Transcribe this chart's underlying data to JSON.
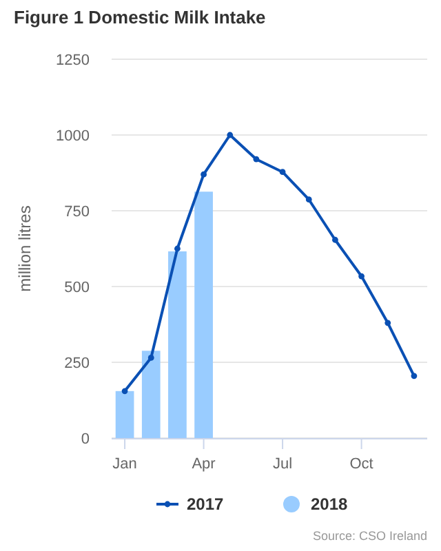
{
  "chart_data": {
    "type": "line",
    "title": "Figure 1 Domestic Milk Intake",
    "ylabel": "million litres",
    "categories": [
      "Jan",
      null,
      null,
      "Apr",
      null,
      null,
      "Jul",
      null,
      null,
      "Oct",
      null,
      null
    ],
    "series": [
      {
        "name": "2017",
        "color": "#0a50b4",
        "values": [
          155,
          265,
          625,
          870,
          1000,
          920,
          878,
          787,
          654,
          534,
          380,
          205
        ]
      },
      {
        "name": "2018",
        "type": "bar",
        "color": "#99ccff",
        "values": [
          155,
          288,
          616,
          813,
          null,
          null,
          null,
          null,
          null,
          null,
          null,
          null
        ]
      }
    ],
    "ylim": [
      0,
      1250
    ],
    "yticks": [
      0,
      250,
      500,
      750,
      1000,
      1250
    ],
    "grid": "y",
    "legend": "bottom",
    "marker": "circle",
    "line_style": "solid",
    "annotations": [
      "Source: CSO Ireland"
    ]
  }
}
